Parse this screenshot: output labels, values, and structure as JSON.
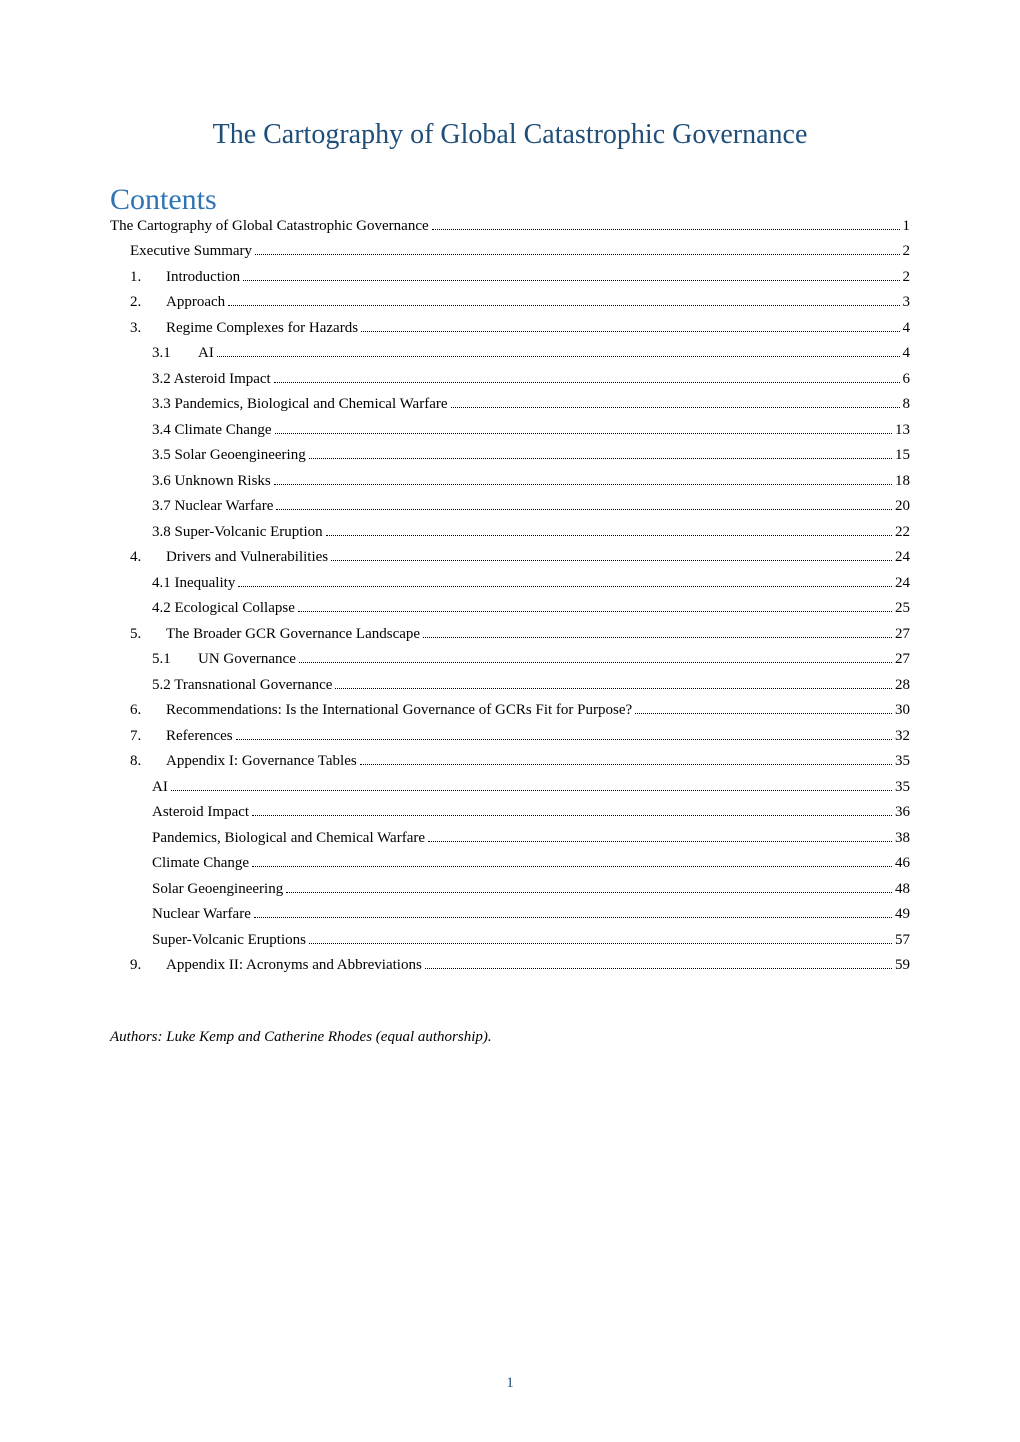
{
  "colors": {
    "title_color": "#1f4e79",
    "contents_heading_color": "#2e74b5",
    "text_color": "#000000",
    "pagenum_color": "#1f4e79",
    "background": "#ffffff"
  },
  "typography": {
    "title_fontsize": 28,
    "contents_heading_fontsize": 30,
    "body_fontsize": 15,
    "font_family": "Garamond"
  },
  "title": "The Cartography of Global Catastrophic Governance",
  "contents_heading": "Contents",
  "toc": [
    {
      "indent": 0,
      "num": "",
      "label": "The Cartography of Global Catastrophic Governance",
      "page": "1"
    },
    {
      "indent": 1,
      "num": "",
      "label": "Executive Summary",
      "page": "2"
    },
    {
      "indent": 1,
      "num": "1.",
      "label": "Introduction",
      "page": "2"
    },
    {
      "indent": 1,
      "num": "2.",
      "label": "Approach",
      "page": "3"
    },
    {
      "indent": 1,
      "num": "3.",
      "label": "Regime Complexes for Hazards",
      "page": "4"
    },
    {
      "indent": 2,
      "num": "3.1",
      "label": "AI",
      "page": "4"
    },
    {
      "indent": 2,
      "num": "",
      "label": "3.2 Asteroid Impact",
      "page": "6"
    },
    {
      "indent": 2,
      "num": "",
      "label": "3.3 Pandemics, Biological and Chemical Warfare",
      "page": "8"
    },
    {
      "indent": 2,
      "num": "",
      "label": "3.4 Climate Change",
      "page": "13"
    },
    {
      "indent": 2,
      "num": "",
      "label": "3.5 Solar Geoengineering",
      "page": "15"
    },
    {
      "indent": 2,
      "num": "",
      "label": "3.6 Unknown Risks",
      "page": "18"
    },
    {
      "indent": 2,
      "num": "",
      "label": "3.7 Nuclear Warfare",
      "page": "20"
    },
    {
      "indent": 2,
      "num": "",
      "label": "3.8 Super-Volcanic Eruption",
      "page": "22"
    },
    {
      "indent": 1,
      "num": "4.",
      "label": "Drivers and Vulnerabilities",
      "page": "24"
    },
    {
      "indent": 2,
      "num": "",
      "label": "4.1 Inequality",
      "page": "24"
    },
    {
      "indent": 2,
      "num": "",
      "label": "4.2 Ecological Collapse",
      "page": "25"
    },
    {
      "indent": 1,
      "num": "5.",
      "label": "The Broader GCR Governance Landscape",
      "page": "27"
    },
    {
      "indent": 2,
      "num": "5.1",
      "label": "UN Governance",
      "page": "27"
    },
    {
      "indent": 2,
      "num": "",
      "label": "5.2 Transnational Governance",
      "page": "28"
    },
    {
      "indent": 1,
      "num": "6.",
      "label": "Recommendations: Is the International Governance of GCRs Fit for Purpose?",
      "page": "30"
    },
    {
      "indent": 1,
      "num": "7.",
      "label": "References",
      "page": "32"
    },
    {
      "indent": 1,
      "num": "8.",
      "label": "Appendix I: Governance Tables",
      "page": "35"
    },
    {
      "indent": 2,
      "num": "",
      "label": "AI",
      "page": "35"
    },
    {
      "indent": 2,
      "num": "",
      "label": "Asteroid Impact",
      "page": "36"
    },
    {
      "indent": 2,
      "num": "",
      "label": "Pandemics, Biological and Chemical Warfare",
      "page": "38"
    },
    {
      "indent": 2,
      "num": "",
      "label": "Climate Change",
      "page": "46"
    },
    {
      "indent": 2,
      "num": "",
      "label": "Solar Geoengineering",
      "page": "48"
    },
    {
      "indent": 2,
      "num": "",
      "label": "Nuclear Warfare",
      "page": "49"
    },
    {
      "indent": 2,
      "num": "",
      "label": "Super-Volcanic Eruptions",
      "page": "57"
    },
    {
      "indent": 1,
      "num": "9.",
      "label": "Appendix II: Acronyms and Abbreviations",
      "page": "59"
    }
  ],
  "authors_line": "Authors: Luke Kemp and Catherine Rhodes (equal authorship).",
  "page_number": "1"
}
